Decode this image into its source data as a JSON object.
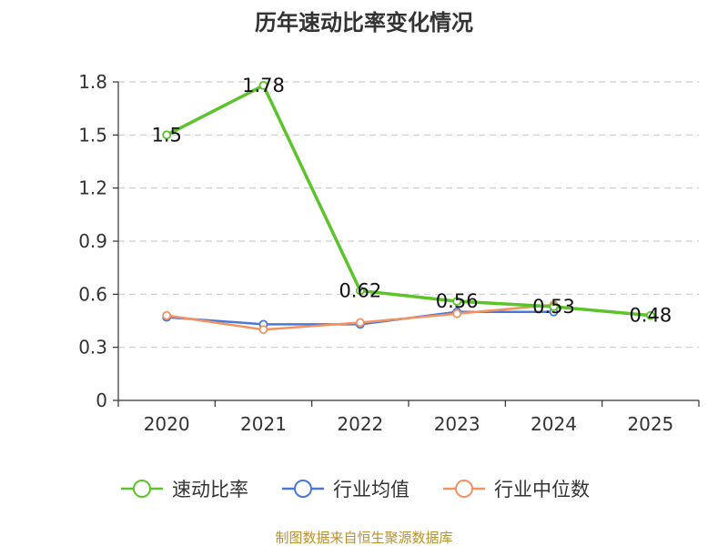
{
  "chart_data": {
    "type": "line",
    "title": "历年速动比率变化情况",
    "categories": [
      "2020",
      "2021",
      "2022",
      "2023",
      "2024",
      "2025"
    ],
    "y_ticks": [
      "0",
      "0.3",
      "0.6",
      "0.9",
      "1.2",
      "1.5",
      "1.8"
    ],
    "ylim": [
      0,
      1.8
    ],
    "grid": true,
    "legend_position": "bottom",
    "series": [
      {
        "name": "速动比率",
        "color": "#5cc32a",
        "values": [
          1.5,
          1.78,
          0.62,
          0.56,
          0.53,
          0.48
        ],
        "labels": [
          "1.5",
          "1.78",
          "0.62",
          "0.56",
          "0.53",
          "0.48"
        ]
      },
      {
        "name": "行业均值",
        "color": "#4a78d8",
        "values": [
          0.47,
          0.43,
          0.43,
          0.5,
          0.5,
          null
        ]
      },
      {
        "name": "行业中位数",
        "color": "#f39362",
        "values": [
          0.48,
          0.4,
          0.44,
          0.49,
          0.54,
          null
        ]
      }
    ]
  },
  "source_text": "制图数据来自恒生聚源数据库"
}
